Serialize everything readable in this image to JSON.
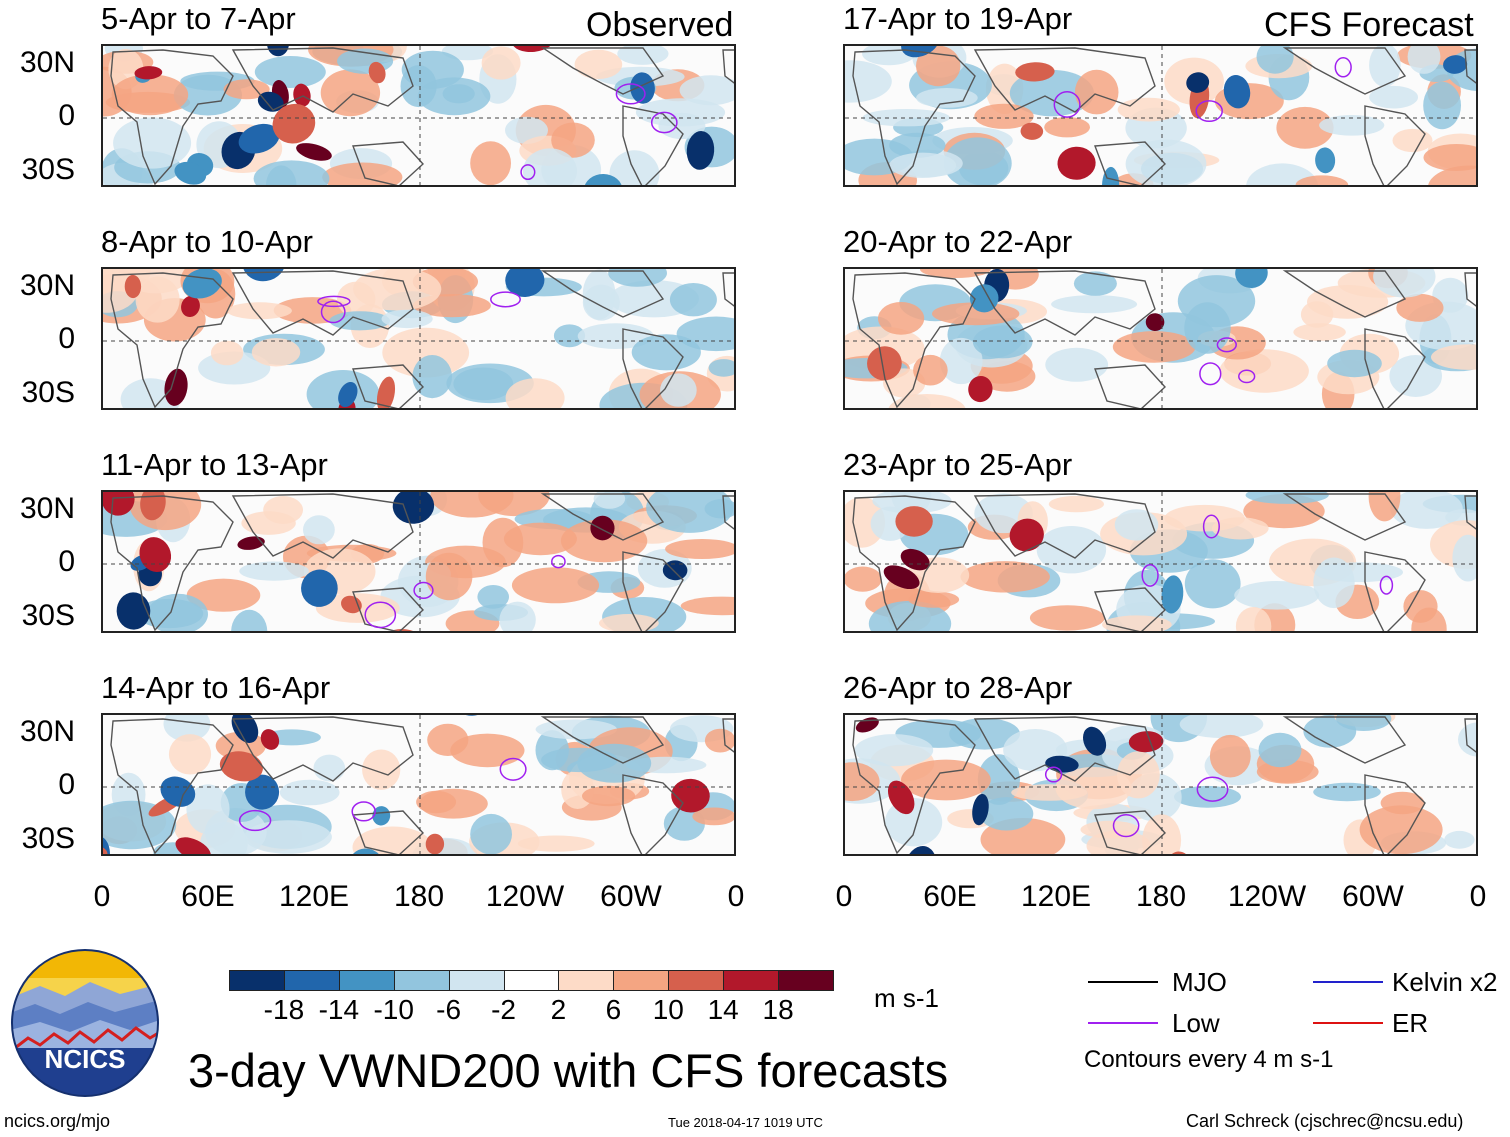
{
  "observed_label": "Observed",
  "forecast_label": "CFS Forecast",
  "panels": {
    "p0": {
      "title": "5-Apr to 7-Apr",
      "kind": "observed"
    },
    "p1": {
      "title": "8-Apr to 10-Apr",
      "kind": "observed"
    },
    "p2": {
      "title": "11-Apr to 13-Apr",
      "kind": "observed"
    },
    "p3": {
      "title": "14-Apr to 16-Apr",
      "kind": "observed"
    },
    "p4": {
      "title": "17-Apr to 19-Apr",
      "kind": "forecast"
    },
    "p5": {
      "title": "20-Apr to 22-Apr",
      "kind": "forecast"
    },
    "p6": {
      "title": "23-Apr to 25-Apr",
      "kind": "forecast"
    },
    "p7": {
      "title": "26-Apr to 28-Apr",
      "kind": "forecast"
    }
  },
  "lat_labels": {
    "n30": "30N",
    "eq": "0",
    "s30": "30S"
  },
  "lon_labels": {
    "l0": "0",
    "l1": "60E",
    "l2": "120E",
    "l3": "180",
    "l4": "120W",
    "l5": "60W",
    "l6": "0"
  },
  "colorbar": {
    "colors": [
      "#08306b",
      "#2166ac",
      "#4393c3",
      "#92c5de",
      "#d1e5f0",
      "#ffffff",
      "#fddbc7",
      "#f4a582",
      "#d6604d",
      "#b2182b",
      "#67001f"
    ],
    "ticks": [
      "-18",
      "-14",
      "-10",
      "-6",
      "-2",
      "2",
      "6",
      "10",
      "14",
      "18"
    ],
    "units": "m s-1"
  },
  "legend": {
    "mjo": {
      "label": "MJO",
      "color": "#000000"
    },
    "kelvin": {
      "label": "Kelvin x2",
      "color": "#2222cc"
    },
    "low": {
      "label": "Low",
      "color": "#a020f0"
    },
    "er": {
      "label": "ER",
      "color": "#dd1111"
    },
    "note": "Contours every 4 m s-1"
  },
  "logo_text": "NCICS",
  "main_title": "3-day VWND200 with CFS forecasts",
  "footer": {
    "left": "ncics.org/mjo",
    "center": "Tue 2018-04-17 1019 UTC",
    "right": "Carl Schreck (cjschrec@ncsu.edu)"
  }
}
